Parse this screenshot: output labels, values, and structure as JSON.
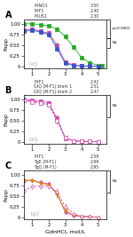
{
  "chart_data": [
    {
      "type": "line",
      "title": "A",
      "y_label": "Fapp",
      "xlim": [
        0.5,
        5.5
      ],
      "ylim": [
        -0.05,
        1.1
      ],
      "xticks": [
        1,
        2,
        3,
        4,
        5
      ],
      "yticks": [
        0,
        0.25,
        {
          "value": 0.5,
          "label": "0.50"
        },
        0.75,
        {
          "value": 1,
          "label": "1.00"
        }
      ],
      "annotations": [
        {
          "text": "GtQ"
        }
      ],
      "brackets": [
        {
          "text": "p<0.0001",
          "y": [
            0.663,
            1.1
          ]
        },
        {
          "text": "NS",
          "y": [
            0.433,
            0.663
          ]
        }
      ],
      "series": [
        {
          "name": "M-NO1",
          "ec50_label": "3.50",
          "color": "#22aa22",
          "marker": "square",
          "line_style": "solid",
          "x": [
            0.5,
            1.0,
            1.5,
            2.0,
            2.5,
            3.0,
            3.5,
            4.0,
            4.5,
            5.0,
            5.25
          ],
          "values": [
            1.0,
            1.0,
            0.98,
            0.95,
            0.88,
            0.7,
            0.45,
            0.2,
            0.08,
            0.02,
            0.01
          ],
          "yerr": [
            0.02,
            0.03,
            0.03,
            0.04,
            0.05,
            0.07,
            0.06,
            0.05,
            0.03,
            0.01,
            0.01
          ]
        },
        {
          "name": "M-F1",
          "ec50_label": "2.40",
          "color": "#cc44aa",
          "marker": "square",
          "line_style": "solid",
          "x": [
            0.5,
            1.0,
            1.5,
            2.0,
            2.5,
            3.0,
            3.5,
            4.0,
            4.5,
            5.0
          ],
          "values": [
            0.85,
            0.88,
            0.82,
            0.78,
            0.5,
            0.1,
            0.03,
            0.01,
            0.005,
            0.0
          ],
          "yerr": [
            0.06,
            0.05,
            0.06,
            0.06,
            0.08,
            0.05,
            0.02,
            0.01,
            0.005,
            0.005
          ]
        },
        {
          "name": "M-US1",
          "ec50_label": "2.30",
          "color": "#3355cc",
          "marker": "square",
          "line_style": "solid",
          "x": [
            0.5,
            1.0,
            1.5,
            2.0,
            2.5,
            3.0,
            3.5,
            4.0,
            4.5,
            5.0
          ],
          "values": [
            0.82,
            0.85,
            0.8,
            0.75,
            0.42,
            0.07,
            0.02,
            0.005,
            0.003,
            0.0
          ],
          "yerr": [
            0.06,
            0.05,
            0.06,
            0.06,
            0.08,
            0.04,
            0.02,
            0.01,
            0.005,
            0.005
          ]
        }
      ]
    },
    {
      "type": "line",
      "title": "B",
      "y_label": "Fapp",
      "xlim": [
        0.5,
        5.5
      ],
      "ylim": [
        -0.05,
        1.1
      ],
      "xticks": [
        1,
        2,
        3,
        4,
        5
      ],
      "yticks": [
        0,
        0.25,
        {
          "value": 0.5,
          "label": "0.50"
        },
        0.75,
        {
          "value": 1,
          "label": "1.00"
        }
      ],
      "annotations": [
        {
          "text": "GtQ"
        }
      ],
      "brackets": [
        {
          "text": "NS",
          "y": [
            0.5825,
            1.1
          ]
        }
      ],
      "series": [
        {
          "name": "M-F1",
          "ec50_label": "2.42",
          "color": "#cc44aa",
          "marker": "square",
          "line_style": "solid",
          "x": [
            0.5,
            1.0,
            1.5,
            2.0,
            2.5,
            3.0,
            3.5,
            4.0,
            4.5,
            5.0
          ],
          "values": [
            1.0,
            0.97,
            0.95,
            0.92,
            0.55,
            0.08,
            0.02,
            0.01,
            0.005,
            0.0
          ],
          "yerr": [
            0.03,
            0.04,
            0.04,
            0.05,
            0.08,
            0.04,
            0.01,
            0.01,
            0.005,
            0.005
          ]
        },
        {
          "name": "GtQ (M-F1) brain 1",
          "ec50_label": "2.51",
          "color": "#cc44aa",
          "marker": "square",
          "line_style": "dashed",
          "x": [
            0.5,
            1.0,
            1.5,
            2.0,
            2.5,
            3.0,
            3.5,
            4.0,
            4.5,
            5.0
          ],
          "values": [
            0.98,
            0.95,
            0.92,
            0.88,
            0.52,
            0.09,
            0.02,
            0.01,
            0.005,
            0.0
          ],
          "yerr": [
            0.03,
            0.04,
            0.05,
            0.06,
            0.08,
            0.04,
            0.01,
            0.01,
            0.005,
            0.005
          ]
        },
        {
          "name": "GtQ (M-F1) brain 2",
          "ec50_label": "2.47",
          "color": "#cc44aa",
          "marker": "square",
          "line_style": "dashed",
          "x": [
            0.5,
            1.0,
            1.5,
            2.0,
            2.5,
            3.0,
            3.5,
            4.0,
            4.5,
            5.0
          ],
          "values": [
            0.97,
            0.94,
            0.91,
            0.87,
            0.5,
            0.09,
            0.02,
            0.01,
            0.005,
            0.0
          ],
          "yerr": [
            0.03,
            0.04,
            0.05,
            0.06,
            0.08,
            0.04,
            0.01,
            0.01,
            0.005,
            0.005
          ]
        }
      ]
    },
    {
      "type": "line",
      "title": "C",
      "x_label": "GdnHCl, mol/L",
      "y_label": "Fapp",
      "xlim": [
        0.5,
        5.5
      ],
      "ylim": [
        -0.05,
        1.1
      ],
      "xticks": [
        1,
        2,
        3,
        4,
        5
      ],
      "yticks": [
        0,
        0.25,
        {
          "value": 0.5,
          "label": "0.50"
        },
        0.75,
        {
          "value": 1,
          "label": "1.00"
        }
      ],
      "annotations": [
        {
          "text": "TgQ"
        }
      ],
      "brackets": [
        {
          "text": "NS",
          "y": [
            0.5825,
            1.1
          ]
        }
      ],
      "series": [
        {
          "name": "M-F1",
          "ec50_label": "2.59",
          "color": "#cc44aa",
          "marker": "circle",
          "line_style": "solid",
          "x": [
            0.5,
            1.0,
            1.5,
            2.0,
            2.5,
            3.0,
            3.5,
            4.0,
            4.5,
            5.0
          ],
          "values": [
            0.85,
            0.87,
            0.82,
            0.78,
            0.55,
            0.12,
            0.04,
            0.01,
            0.005,
            0.0
          ],
          "yerr": [
            0.06,
            0.05,
            0.06,
            0.07,
            0.09,
            0.06,
            0.02,
            0.01,
            0.005,
            0.005
          ]
        },
        {
          "name": "TgE (M-F1)",
          "ec50_label": "2.69",
          "color": "#dd8800",
          "marker": "circle",
          "line_style": "solid",
          "x": [
            0.5,
            1.0,
            1.5,
            2.0,
            2.5,
            3.0,
            3.5,
            4.0,
            4.5,
            5.0
          ],
          "values": [
            0.88,
            0.86,
            0.8,
            0.76,
            0.55,
            0.15,
            0.05,
            0.02,
            0.01,
            0.0
          ],
          "yerr": [
            0.06,
            0.06,
            0.06,
            0.07,
            0.08,
            0.06,
            0.03,
            0.01,
            0.01,
            0.005
          ]
        },
        {
          "name": "TgQ (M-F1)",
          "ec50_label": "2.95",
          "color": "#cc44aa",
          "marker": "circle",
          "line_style": "dashed",
          "x": [
            0.5,
            1.0,
            1.5,
            2.0,
            2.5,
            3.0,
            3.5,
            4.0,
            4.5,
            5.0
          ],
          "values": [
            0.62,
            0.72,
            0.73,
            0.73,
            0.6,
            0.25,
            0.08,
            0.02,
            0.01,
            0.0
          ],
          "yerr": [
            0.07,
            0.06,
            0.06,
            0.07,
            0.08,
            0.07,
            0.03,
            0.01,
            0.01,
            0.005
          ]
        }
      ]
    }
  ]
}
